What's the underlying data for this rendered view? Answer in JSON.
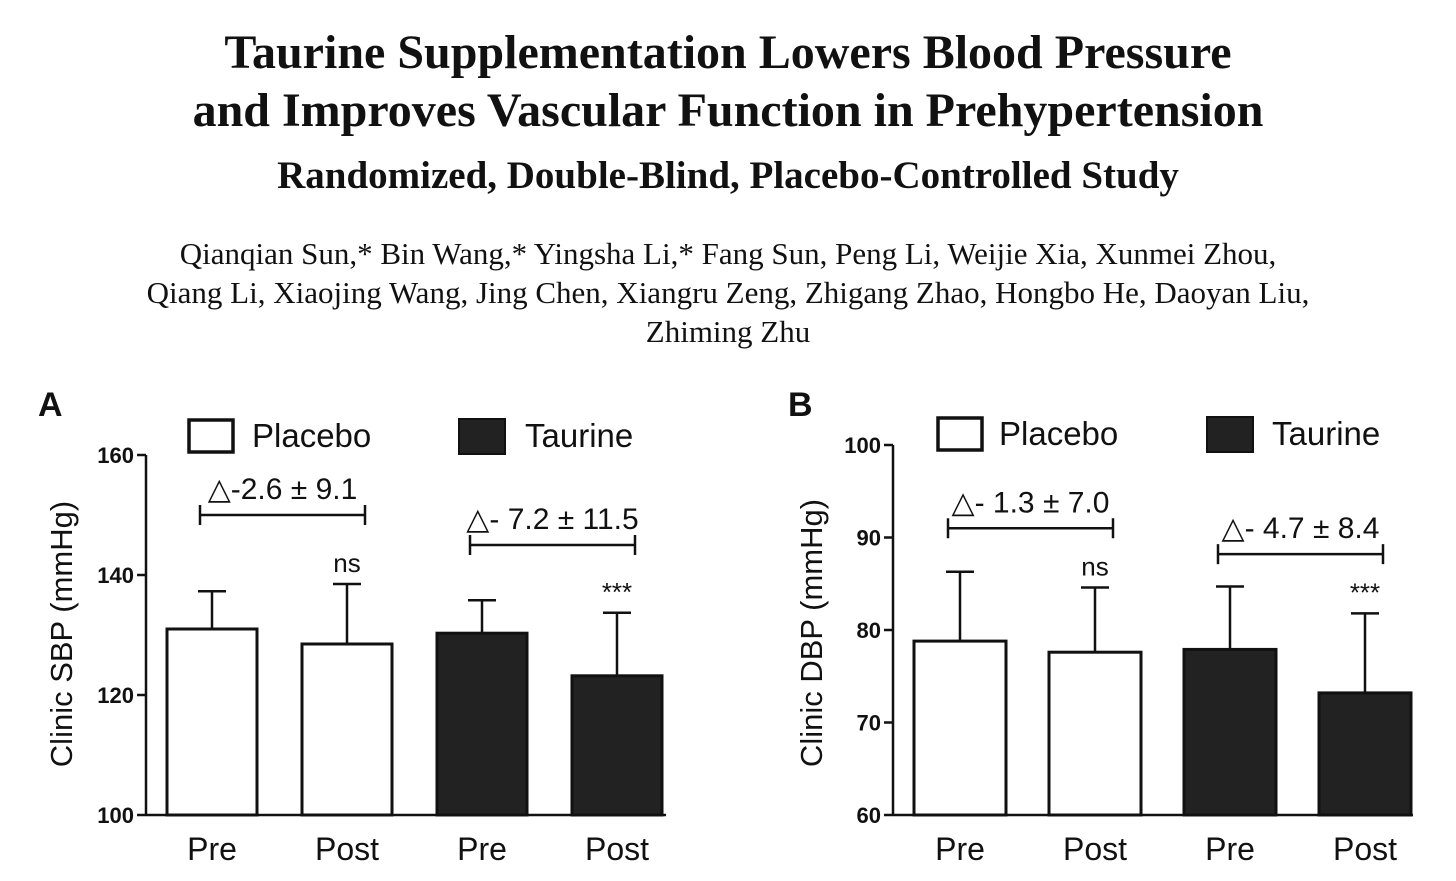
{
  "header": {
    "title_line1": "Taurine Supplementation Lowers Blood Pressure",
    "title_line2": "and Improves Vascular Function in Prehypertension",
    "subtitle": "Randomized, Double-Blind, Placebo-Controlled Study",
    "authors_line1": "Qianqian Sun,* Bin Wang,* Yingsha Li,* Fang Sun, Peng Li, Weijie Xia, Xunmei Zhou,",
    "authors_line2": "Qiang Li, Xiaojing Wang, Jing Chen, Xiangru Zeng, Zhigang Zhao, Hongbo He, Daoyan Liu,",
    "authors_line3": "Zhiming Zhu"
  },
  "colors": {
    "placebo_fill": "#ffffff",
    "taurine_fill": "#222222",
    "stroke": "#111111"
  },
  "chart_data": [
    {
      "panel": "A",
      "type": "bar",
      "ylabel": "Clinic SBP (mmHg)",
      "ylim": [
        100,
        160
      ],
      "yticks": [
        100,
        120,
        140,
        160
      ],
      "legend": [
        "Placebo",
        "Taurine"
      ],
      "categories": [
        "Pre",
        "Post",
        "Pre",
        "Post"
      ],
      "groups": [
        "Placebo",
        "Placebo",
        "Taurine",
        "Taurine"
      ],
      "values": [
        131,
        128.5,
        130.3,
        123.2
      ],
      "errors": [
        6.3,
        10,
        5.5,
        10.5
      ],
      "sig": [
        "",
        "ns",
        "",
        "***"
      ],
      "brackets": [
        {
          "from": 0,
          "to": 1,
          "label": "△-2.6 ± 9.1",
          "y": 150
        },
        {
          "from": 2,
          "to": 3,
          "label": "△- 7.2 ± 11.5",
          "y": 145
        }
      ]
    },
    {
      "panel": "B",
      "type": "bar",
      "ylabel": "Clinic DBP (mmHg)",
      "ylim": [
        60,
        100
      ],
      "yticks": [
        60,
        70,
        80,
        90,
        100
      ],
      "legend": [
        "Placebo",
        "Taurine"
      ],
      "categories": [
        "Pre",
        "Post",
        "Pre",
        "Post"
      ],
      "groups": [
        "Placebo",
        "Placebo",
        "Taurine",
        "Taurine"
      ],
      "values": [
        78.8,
        77.6,
        77.9,
        73.2
      ],
      "errors": [
        7.5,
        7,
        6.8,
        8.6
      ],
      "sig": [
        "",
        "ns",
        "",
        "***"
      ],
      "brackets": [
        {
          "from": 0,
          "to": 1,
          "label": "△- 1.3 ± 7.0",
          "y": 91
        },
        {
          "from": 2,
          "to": 3,
          "label": "△- 4.7 ± 8.4",
          "y": 88.2
        }
      ]
    }
  ]
}
